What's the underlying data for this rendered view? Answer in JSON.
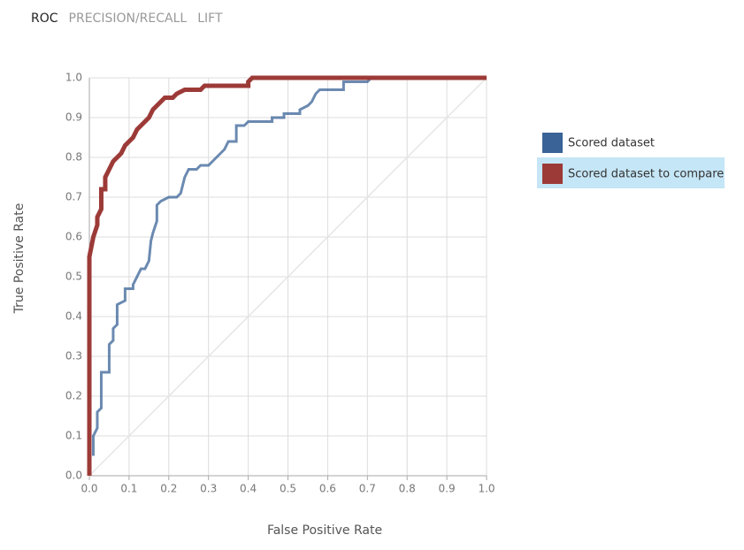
{
  "tabs": [
    "ROC",
    "PRECISION/RECALL",
    "LIFT"
  ],
  "active_tab": 0,
  "chart_data": {
    "type": "line",
    "xlabel": "False Positive Rate",
    "ylabel": "True Positive Rate",
    "xlim": [
      0,
      1
    ],
    "ylim": [
      0,
      1
    ],
    "xticks": [
      {
        "value": 0,
        "label": "0.0"
      },
      0.1,
      0.2,
      0.3,
      0.4,
      0.5,
      0.6,
      0.7,
      0.8,
      0.9,
      {
        "value": 1,
        "label": "1.0"
      }
    ],
    "yticks": [
      {
        "value": 0,
        "label": "0.0"
      },
      0.1,
      0.2,
      0.3,
      0.4,
      0.5,
      0.6,
      0.7,
      0.8,
      0.9,
      {
        "value": 1,
        "label": "1.0"
      }
    ],
    "grid": true,
    "legend": "right",
    "selected_series": 1,
    "series": [
      {
        "name": "Scored dataset",
        "color": "#3a6397",
        "x": [
          0.01,
          0.01,
          0.02,
          0.02,
          0.03,
          0.03,
          0.05,
          0.05,
          0.06,
          0.06,
          0.07,
          0.07,
          0.09,
          0.09,
          0.11,
          0.11,
          0.12,
          0.13,
          0.14,
          0.15,
          0.155,
          0.16,
          0.17,
          0.17,
          0.18,
          0.2,
          0.22,
          0.23,
          0.24,
          0.25,
          0.27,
          0.28,
          0.3,
          0.32,
          0.33,
          0.34,
          0.35,
          0.37,
          0.37,
          0.39,
          0.4,
          0.46,
          0.46,
          0.49,
          0.49,
          0.53,
          0.53,
          0.55,
          0.56,
          0.57,
          0.58,
          0.64,
          0.64,
          0.7,
          0.71,
          1.0
        ],
        "values": [
          0.05,
          0.1,
          0.12,
          0.16,
          0.17,
          0.26,
          0.26,
          0.33,
          0.34,
          0.37,
          0.38,
          0.43,
          0.44,
          0.47,
          0.47,
          0.48,
          0.5,
          0.52,
          0.52,
          0.54,
          0.59,
          0.61,
          0.64,
          0.68,
          0.69,
          0.7,
          0.7,
          0.71,
          0.75,
          0.77,
          0.77,
          0.78,
          0.78,
          0.8,
          0.81,
          0.82,
          0.84,
          0.84,
          0.88,
          0.88,
          0.89,
          0.89,
          0.9,
          0.9,
          0.91,
          0.91,
          0.92,
          0.93,
          0.94,
          0.96,
          0.97,
          0.97,
          0.99,
          0.99,
          1.0,
          1.0
        ]
      },
      {
        "name": "Scored dataset to compare",
        "color": "#9c3a37",
        "x": [
          0,
          0,
          0.01,
          0.02,
          0.02,
          0.03,
          0.03,
          0.04,
          0.04,
          0.05,
          0.06,
          0.07,
          0.08,
          0.09,
          0.1,
          0.11,
          0.12,
          0.13,
          0.14,
          0.15,
          0.16,
          0.17,
          0.18,
          0.19,
          0.21,
          0.22,
          0.24,
          0.28,
          0.29,
          0.4,
          0.4,
          0.41,
          1.0
        ],
        "values": [
          0,
          0.55,
          0.6,
          0.63,
          0.65,
          0.67,
          0.72,
          0.72,
          0.75,
          0.77,
          0.79,
          0.8,
          0.81,
          0.83,
          0.84,
          0.85,
          0.87,
          0.88,
          0.89,
          0.9,
          0.92,
          0.93,
          0.94,
          0.95,
          0.95,
          0.96,
          0.97,
          0.97,
          0.98,
          0.98,
          0.99,
          1.0,
          1.0
        ]
      }
    ]
  }
}
